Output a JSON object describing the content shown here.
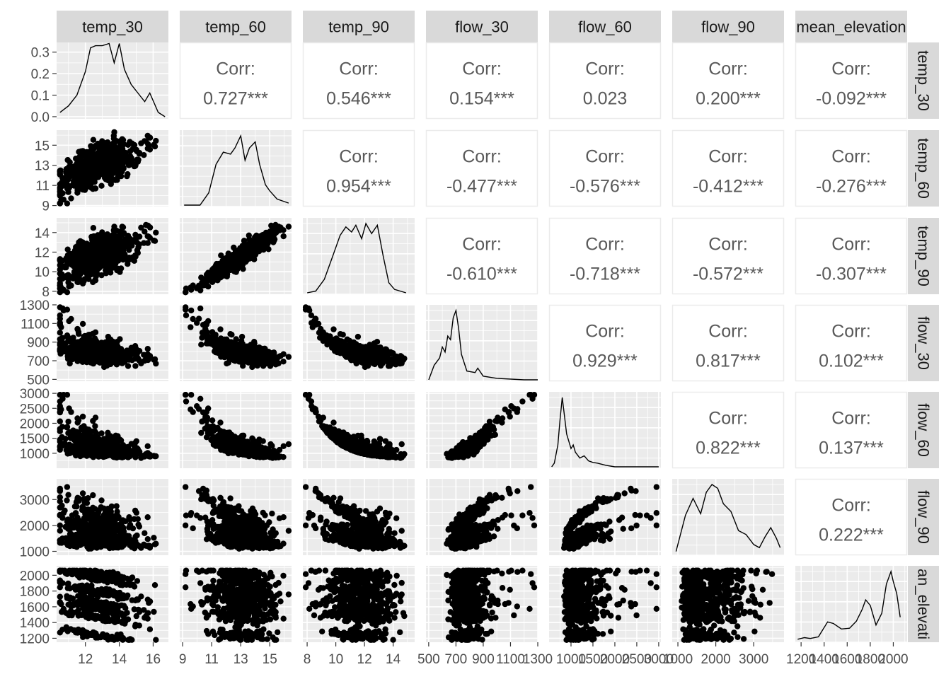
{
  "chart_data": {
    "type": "scatter",
    "title": "",
    "variables": [
      "temp_30",
      "temp_60",
      "temp_90",
      "flow_30",
      "flow_60",
      "flow_90",
      "mean_elevation"
    ],
    "row_strip_labels": [
      "temp_30",
      "temp_60",
      "temp_90",
      "flow_30",
      "flow_60",
      "flow_90",
      "an_elevati"
    ],
    "corr_label": "Corr:",
    "correlations": [
      {
        "row": 0,
        "col": 1,
        "text": "0.727***"
      },
      {
        "row": 0,
        "col": 2,
        "text": "0.546***"
      },
      {
        "row": 0,
        "col": 3,
        "text": "0.154***"
      },
      {
        "row": 0,
        "col": 4,
        "text": "0.023"
      },
      {
        "row": 0,
        "col": 5,
        "text": "0.200***"
      },
      {
        "row": 0,
        "col": 6,
        "text": "-0.092***"
      },
      {
        "row": 1,
        "col": 2,
        "text": "0.954***"
      },
      {
        "row": 1,
        "col": 3,
        "text": "-0.477***"
      },
      {
        "row": 1,
        "col": 4,
        "text": "-0.576***"
      },
      {
        "row": 1,
        "col": 5,
        "text": "-0.412***"
      },
      {
        "row": 1,
        "col": 6,
        "text": "-0.276***"
      },
      {
        "row": 2,
        "col": 3,
        "text": "-0.610***"
      },
      {
        "row": 2,
        "col": 4,
        "text": "-0.718***"
      },
      {
        "row": 2,
        "col": 5,
        "text": "-0.572***"
      },
      {
        "row": 2,
        "col": 6,
        "text": "-0.307***"
      },
      {
        "row": 3,
        "col": 4,
        "text": "0.929***"
      },
      {
        "row": 3,
        "col": 5,
        "text": "0.817***"
      },
      {
        "row": 3,
        "col": 6,
        "text": "0.102***"
      },
      {
        "row": 4,
        "col": 5,
        "text": "0.822***"
      },
      {
        "row": 4,
        "col": 6,
        "text": "0.137***"
      },
      {
        "row": 5,
        "col": 6,
        "text": "0.222***"
      }
    ],
    "xlims": [
      [
        10.3,
        16.9
      ],
      [
        8.8,
        16.5
      ],
      [
        7.7,
        15.5
      ],
      [
        480,
        1300
      ],
      [
        500,
        3050
      ],
      [
        850,
        3800
      ],
      [
        1150,
        2120
      ]
    ],
    "ylims": [
      [
        -0.01,
        0.345
      ],
      [
        8.9,
        16.5
      ],
      [
        7.7,
        15.5
      ],
      [
        480,
        1300
      ],
      [
        500,
        3050
      ],
      [
        850,
        3800
      ],
      [
        1150,
        2120
      ]
    ],
    "x_ticks": [
      {
        "values": [
          12,
          14,
          16
        ],
        "labels": [
          "12",
          "14",
          "16"
        ]
      },
      {
        "values": [
          9,
          11,
          13,
          15
        ],
        "labels": [
          "9",
          "11",
          "13",
          "15"
        ]
      },
      {
        "values": [
          8,
          10,
          12,
          14
        ],
        "labels": [
          "8",
          "10",
          "12",
          "14"
        ]
      },
      {
        "values": [
          500,
          700,
          900,
          1100,
          1300
        ],
        "labels": [
          "500",
          "700",
          "900",
          "1100",
          "1300"
        ]
      },
      {
        "values": [
          1000,
          1500,
          2000,
          2500,
          3000
        ],
        "labels": [
          "1000",
          "1500",
          "2000",
          "2500",
          "3000"
        ]
      },
      {
        "values": [
          1000,
          2000,
          3000
        ],
        "labels": [
          "1000",
          "2000",
          "3000"
        ]
      },
      {
        "values": [
          1200,
          1400,
          1600,
          1800,
          2000
        ],
        "labels": [
          "1200",
          "1400",
          "1600",
          "1800",
          "2000"
        ]
      }
    ],
    "y_ticks": [
      {
        "values": [
          0,
          0.1,
          0.2,
          0.3
        ],
        "labels": [
          "0.0",
          "0.1",
          "0.2",
          "0.3"
        ]
      },
      {
        "values": [
          9,
          11,
          13,
          15
        ],
        "labels": [
          "9",
          "11",
          "13",
          "15"
        ]
      },
      {
        "values": [
          8,
          10,
          12,
          14
        ],
        "labels": [
          "8",
          "10",
          "12",
          "14"
        ]
      },
      {
        "values": [
          500,
          700,
          900,
          1100,
          1300
        ],
        "labels": [
          "500",
          "700",
          "900",
          "1100",
          "1300"
        ]
      },
      {
        "values": [
          1000,
          1500,
          2000,
          2500,
          3000
        ],
        "labels": [
          "1000",
          "1500",
          "2000",
          "2500",
          "3000"
        ]
      },
      {
        "values": [
          1000,
          2000,
          3000
        ],
        "labels": [
          "1000",
          "2000",
          "3000"
        ]
      },
      {
        "values": [
          1200,
          1400,
          1600,
          1800,
          2000
        ],
        "labels": [
          "1200",
          "1400",
          "1600",
          "1800",
          "2000"
        ]
      }
    ],
    "densities": [
      {
        "var": "temp_30",
        "x": [
          10.5,
          11,
          11.5,
          12,
          12.3,
          12.6,
          13,
          13.4,
          13.7,
          14,
          14.3,
          14.7,
          15,
          15.5,
          15.8,
          16.3,
          16.7
        ],
        "y": [
          0.02,
          0.05,
          0.1,
          0.21,
          0.32,
          0.33,
          0.33,
          0.34,
          0.25,
          0.34,
          0.22,
          0.15,
          0.12,
          0.07,
          0.11,
          0.02,
          0.0
        ]
      },
      {
        "var": "temp_60",
        "x": [
          9.1,
          10.2,
          10.8,
          11.3,
          11.8,
          12.3,
          12.6,
          13,
          13.3,
          13.6,
          14,
          14.3,
          14.7,
          15,
          15.5,
          16.3
        ],
        "y": [
          0.0,
          0.0,
          0.06,
          0.2,
          0.26,
          0.25,
          0.28,
          0.34,
          0.22,
          0.28,
          0.31,
          0.2,
          0.1,
          0.07,
          0.03,
          0.01
        ]
      },
      {
        "var": "temp_90",
        "x": [
          8,
          8.6,
          9.2,
          9.8,
          10.3,
          10.7,
          11.1,
          11.4,
          11.8,
          12.1,
          12.5,
          12.9,
          13.3,
          13.7,
          14.1,
          14.9
        ],
        "y": [
          0.0,
          0.01,
          0.08,
          0.22,
          0.34,
          0.39,
          0.36,
          0.4,
          0.32,
          0.41,
          0.35,
          0.4,
          0.22,
          0.06,
          0.02,
          0.0
        ]
      },
      {
        "var": "flow_30",
        "x": [
          500,
          540,
          580,
          600,
          620,
          640,
          660,
          680,
          700,
          720,
          740,
          780,
          840,
          860,
          900,
          1000,
          1200,
          1300
        ],
        "y": [
          0.0,
          0.2,
          0.3,
          0.45,
          0.38,
          0.6,
          0.55,
          0.85,
          0.95,
          0.7,
          0.35,
          0.12,
          0.1,
          0.16,
          0.05,
          0.02,
          0.0,
          0.0
        ]
      },
      {
        "var": "flow_60",
        "x": [
          560,
          620,
          700,
          750,
          800,
          850,
          900,
          950,
          1000,
          1050,
          1100,
          1200,
          1300,
          1400,
          1500,
          1600,
          1800,
          2000,
          2500,
          3000
        ],
        "y": [
          0.0,
          0.05,
          0.3,
          0.65,
          0.95,
          0.7,
          0.45,
          0.35,
          0.25,
          0.3,
          0.2,
          0.12,
          0.15,
          0.08,
          0.06,
          0.05,
          0.02,
          0.0,
          0.0,
          0.0
        ]
      },
      {
        "var": "flow_90",
        "x": [
          950,
          1200,
          1400,
          1600,
          1750,
          1900,
          2050,
          2200,
          2400,
          2600,
          2800,
          3000,
          3150,
          3300,
          3450,
          3600,
          3700
        ],
        "y": [
          0.03,
          0.5,
          0.72,
          0.52,
          0.8,
          0.9,
          0.85,
          0.65,
          0.55,
          0.3,
          0.25,
          0.12,
          0.08,
          0.22,
          0.34,
          0.2,
          0.08
        ]
      },
      {
        "var": "mean_elevation",
        "x": [
          1170,
          1230,
          1280,
          1350,
          1430,
          1480,
          1550,
          1620,
          1680,
          1730,
          1760,
          1800,
          1850,
          1900,
          1940,
          1980,
          2000,
          2030,
          2060
        ],
        "y": [
          0.02,
          0.04,
          0.03,
          0.05,
          0.24,
          0.22,
          0.15,
          0.16,
          0.25,
          0.4,
          0.52,
          0.45,
          0.2,
          0.35,
          0.72,
          0.88,
          0.75,
          0.6,
          0.3
        ]
      }
    ],
    "seed": 20240
  }
}
